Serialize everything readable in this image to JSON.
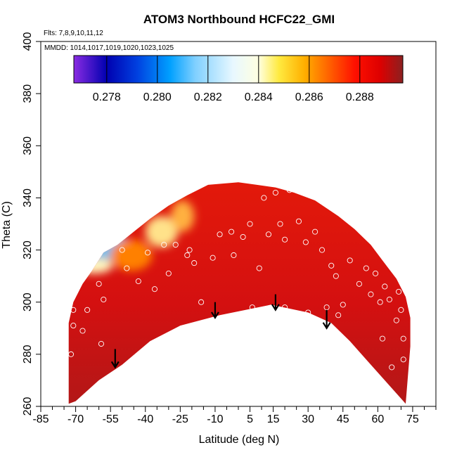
{
  "chart_data": {
    "type": "heatmap",
    "title": "ATOM3 Northbound HCFC22_GMI",
    "flights_note": "Flts: 7,8,9,10,11,12",
    "dates_note": "MMDD: 1014,1017,1019,1020,1023,1025",
    "xlabel": "Latitude (deg N)",
    "ylabel": "Theta (C)",
    "xlim": [
      -85,
      85
    ],
    "ylim": [
      260,
      400
    ],
    "x_ticks": [
      -85,
      -70,
      -55,
      -40,
      -25,
      -10,
      5,
      15,
      30,
      45,
      60,
      75
    ],
    "x_minor_ticks": [
      -80,
      -75,
      -65,
      -60,
      -50,
      -45,
      -35,
      -30,
      -20,
      -15,
      -5,
      0,
      10,
      20,
      25,
      35,
      40,
      50,
      55,
      65,
      70,
      80,
      85
    ],
    "y_ticks": [
      260,
      280,
      300,
      320,
      340,
      360,
      380,
      400
    ],
    "colorbar": {
      "range": [
        0.2767,
        0.2897
      ],
      "ticks": [
        0.278,
        0.28,
        0.282,
        0.284,
        0.286,
        0.288
      ],
      "tick_labels": [
        "0.278",
        "0.280",
        "0.282",
        "0.284",
        "0.286",
        "0.288"
      ],
      "gradient_stops": [
        {
          "v": 0.2767,
          "color": "#8a2be2"
        },
        {
          "v": 0.278,
          "color": "#0000b0"
        },
        {
          "v": 0.2792,
          "color": "#0040e0"
        },
        {
          "v": 0.2805,
          "color": "#00a0ff"
        },
        {
          "v": 0.2815,
          "color": "#80d0ff"
        },
        {
          "v": 0.283,
          "color": "#e8f8ff"
        },
        {
          "v": 0.284,
          "color": "#ffffe0"
        },
        {
          "v": 0.2848,
          "color": "#ffea40"
        },
        {
          "v": 0.2858,
          "color": "#ffb000"
        },
        {
          "v": 0.2868,
          "color": "#ff6000"
        },
        {
          "v": 0.2878,
          "color": "#ff1000"
        },
        {
          "v": 0.2888,
          "color": "#dd0000"
        },
        {
          "v": 0.2897,
          "color": "#8b2020"
        }
      ]
    },
    "field_colors": {
      "top": "#e41a0a",
      "mid": "#d41010",
      "bottom": "#b01818"
    },
    "field_boundary": {
      "upper": [
        [
          -73,
          274
        ],
        [
          -73,
          292
        ],
        [
          -71,
          300
        ],
        [
          -67,
          307
        ],
        [
          -63,
          312
        ],
        [
          -58,
          319
        ],
        [
          -52,
          322
        ],
        [
          -45,
          327
        ],
        [
          -38,
          332
        ],
        [
          -30,
          337
        ],
        [
          -22,
          341
        ],
        [
          -13,
          345
        ],
        [
          0,
          346
        ],
        [
          8,
          345
        ],
        [
          16,
          344
        ],
        [
          24,
          342
        ],
        [
          33,
          339
        ],
        [
          43,
          333
        ],
        [
          50,
          328
        ],
        [
          57,
          322
        ],
        [
          62,
          316
        ],
        [
          68,
          309
        ],
        [
          72,
          302
        ],
        [
          74,
          294
        ],
        [
          74,
          283
        ]
      ],
      "lower": [
        [
          74,
          283
        ],
        [
          72,
          261
        ],
        [
          56,
          277
        ],
        [
          48,
          285
        ],
        [
          40,
          292
        ],
        [
          30,
          296
        ],
        [
          14,
          299
        ],
        [
          -8,
          295
        ],
        [
          -25,
          291
        ],
        [
          -38,
          285
        ],
        [
          -50,
          276
        ],
        [
          -60,
          270
        ],
        [
          -70,
          262
        ],
        [
          -73,
          261
        ]
      ]
    },
    "anomalies": [
      {
        "lat": -61,
        "theta": 322,
        "rx": 9,
        "ry": 5,
        "color": "#2a8cf0",
        "label": "blue low"
      },
      {
        "lat": -54,
        "theta": 321,
        "rx": 8,
        "ry": 5,
        "color": "#6cc0f0",
        "label": "light blue"
      },
      {
        "lat": -62,
        "theta": 314,
        "rx": 8,
        "ry": 3,
        "color": "#fff8c0",
        "label": "pale yellow"
      },
      {
        "lat": -33,
        "theta": 327,
        "rx": 7,
        "ry": 6,
        "color": "#ffe28a",
        "label": "yellow patch"
      },
      {
        "lat": -24,
        "theta": 333,
        "rx": 5,
        "ry": 6,
        "color": "#ffb040",
        "label": "orange patch"
      },
      {
        "lat": -46,
        "theta": 318,
        "rx": 9,
        "ry": 6,
        "color": "#ff8000",
        "label": "orange band"
      }
    ],
    "points": [
      [
        -72,
        306
      ],
      [
        -71,
        297
      ],
      [
        -71,
        291
      ],
      [
        -72,
        280
      ],
      [
        -67,
        289
      ],
      [
        -65,
        297
      ],
      [
        -60,
        307
      ],
      [
        -58,
        301
      ],
      [
        -59,
        284
      ],
      [
        -55,
        269
      ],
      [
        -50,
        320
      ],
      [
        -48,
        313
      ],
      [
        -43,
        308
      ],
      [
        -39,
        319
      ],
      [
        -36,
        305
      ],
      [
        -32,
        322
      ],
      [
        -30,
        311
      ],
      [
        -27,
        322
      ],
      [
        -21,
        320
      ],
      [
        -19,
        315
      ],
      [
        -16,
        300
      ],
      [
        -11,
        317
      ],
      [
        -8,
        326
      ],
      [
        -3,
        327
      ],
      [
        -2,
        318
      ],
      [
        2,
        325
      ],
      [
        5,
        330
      ],
      [
        9,
        313
      ],
      [
        11,
        340
      ],
      [
        13,
        326
      ],
      [
        16,
        342
      ],
      [
        18,
        330
      ],
      [
        20,
        324
      ],
      [
        22,
        343
      ],
      [
        26,
        331
      ],
      [
        29,
        323
      ],
      [
        30,
        296
      ],
      [
        33,
        327
      ],
      [
        36,
        320
      ],
      [
        40,
        314
      ],
      [
        42,
        310
      ],
      [
        43,
        295
      ],
      [
        45,
        299
      ],
      [
        48,
        316
      ],
      [
        52,
        307
      ],
      [
        55,
        313
      ],
      [
        57,
        303
      ],
      [
        59,
        311
      ],
      [
        61,
        300
      ],
      [
        63,
        306
      ],
      [
        65,
        301
      ],
      [
        68,
        293
      ],
      [
        69,
        304
      ],
      [
        70,
        297
      ],
      [
        71,
        286
      ],
      [
        71,
        278
      ],
      [
        66,
        275
      ],
      [
        62,
        286
      ],
      [
        -65,
        323
      ],
      [
        -22,
        318
      ],
      [
        -12,
        292
      ],
      [
        6,
        298
      ],
      [
        20,
        298
      ],
      [
        38,
        298
      ]
    ],
    "arrows": [
      {
        "lat": -53,
        "theta_top": 282,
        "theta_bottom": 275
      },
      {
        "lat": -10,
        "theta_top": 300,
        "theta_bottom": 294
      },
      {
        "lat": 16,
        "theta_top": 303,
        "theta_bottom": 297
      },
      {
        "lat": 38,
        "theta_top": 297,
        "theta_bottom": 290
      }
    ]
  }
}
